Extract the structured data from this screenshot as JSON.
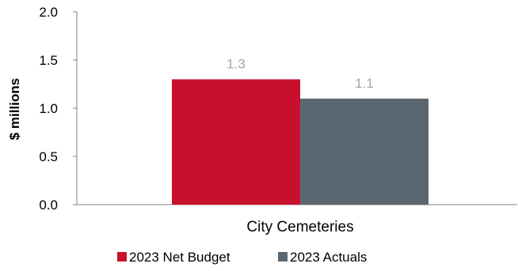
{
  "chart_data": {
    "type": "bar",
    "categories": [
      "City Cemeteries"
    ],
    "series": [
      {
        "name": "2023 Net Budget",
        "values": [
          1.3
        ],
        "color": "#c8102e",
        "label": "1.3"
      },
      {
        "name": "2023 Actuals",
        "values": [
          1.1
        ],
        "color": "#5b6770",
        "label": "1.1"
      }
    ],
    "title": "",
    "xlabel": "",
    "ylabel": "$ millions",
    "ylim": [
      0,
      2.0
    ],
    "yticks": [
      "0.0",
      "0.5",
      "1.0",
      "1.5",
      "2.0"
    ],
    "grid": false,
    "legend_position": "bottom-center"
  }
}
